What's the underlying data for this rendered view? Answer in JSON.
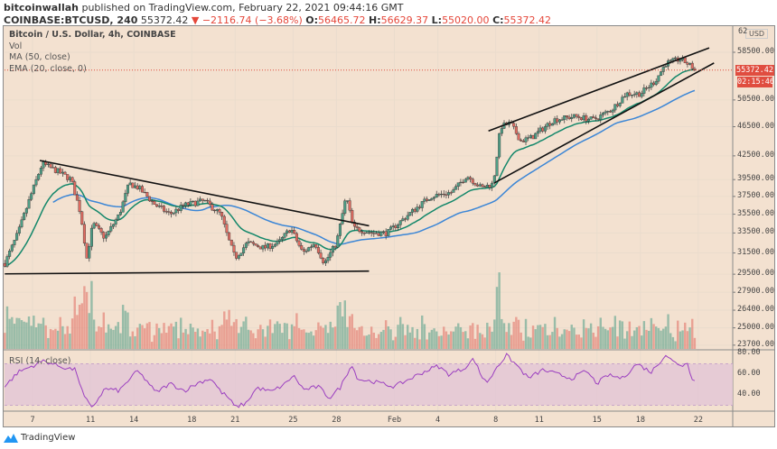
{
  "header": {
    "author": "bitcoinwallah",
    "published": "published on TradingView.com, February 22, 2021 09:44:16 GMT",
    "symbol": "COINBASE:BTCUSD, 240",
    "last": "55372.42",
    "change": "▼ −2116.74 (−3.68%)",
    "o_label": "O:",
    "o": "56465.72",
    "h_label": "H:",
    "h": "56629.37",
    "l_label": "L:",
    "l": "55020.00",
    "c_label": "C:",
    "c": "55372.42"
  },
  "legend": {
    "title": "Bitcoin / U.S. Dollar, 4h, COINBASE",
    "vol": "Vol",
    "ma": "MA (50, close)",
    "ema": "EMA (20, close, 0)",
    "rsi": "RSI (14, close)"
  },
  "price_axis": {
    "currency": "USD",
    "top_label": "62",
    "ticks": [
      "58500.00",
      "50500.00",
      "46500.00",
      "42500.00",
      "39500.00",
      "37500.00",
      "35500.00",
      "33500.00",
      "31500.00",
      "29500.00",
      "27900.00",
      "26400.00",
      "25000.00",
      "23700.00"
    ],
    "last_price_label": "55372.42",
    "countdown": "02:15:46"
  },
  "rsi_axis": {
    "ticks": [
      "80.00",
      "60.00",
      "40.00"
    ]
  },
  "time_axis": {
    "ticks": [
      "7",
      "11",
      "14",
      "18",
      "21",
      "25",
      "28",
      "Feb",
      "4",
      "8",
      "11",
      "15",
      "18",
      "22"
    ]
  },
  "footer": {
    "brand": "TradingView"
  },
  "colors": {
    "background": "#f3e1d0",
    "up": "#4e9e86",
    "down": "#e06b61",
    "ma": "#3b86d6",
    "ema": "#13876a",
    "rsi": "#9b3fc0",
    "last_price": "#e04d3f"
  },
  "chart_data": {
    "type": "candlestick",
    "interval": "4h",
    "scale": "log",
    "tick_prices": [
      58500,
      50500,
      46500,
      42500,
      39500,
      37500,
      35500,
      33500,
      31500,
      29500,
      27900,
      26400,
      25000,
      23700
    ],
    "tick_dates": [
      "2021-01-07",
      "2021-01-11",
      "2021-01-14",
      "2021-01-18",
      "2021-01-21",
      "2021-01-25",
      "2021-01-28",
      "2021-02-01",
      "2021-02-04",
      "2021-02-08",
      "2021-02-11",
      "2021-02-15",
      "2021-02-18",
      "2021-02-22"
    ],
    "close_path": [
      [
        "2021-01-05T14",
        30500
      ],
      [
        "2021-01-06T12",
        33500
      ],
      [
        "2021-01-07T06",
        37000
      ],
      [
        "2021-01-08T04",
        41500
      ],
      [
        "2021-01-09T06",
        40500
      ],
      [
        "2021-01-10T04",
        39500
      ],
      [
        "2021-01-10T20",
        35500
      ],
      [
        "2021-01-11T06",
        31000
      ],
      [
        "2021-01-11T16",
        34500
      ],
      [
        "2021-01-12T12",
        33000
      ],
      [
        "2021-01-13T12",
        35500
      ],
      [
        "2021-01-14T04",
        39000
      ],
      [
        "2021-01-14T20",
        38500
      ],
      [
        "2021-01-16T00",
        36500
      ],
      [
        "2021-01-17T00",
        35500
      ],
      [
        "2021-01-18T00",
        36500
      ],
      [
        "2021-01-19T08",
        37000
      ],
      [
        "2021-01-20T12",
        35500
      ],
      [
        "2021-01-21T00",
        33000
      ],
      [
        "2021-01-21T12",
        31000
      ],
      [
        "2021-01-22T08",
        32500
      ],
      [
        "2021-01-23T12",
        32000
      ],
      [
        "2021-01-24T12",
        32500
      ],
      [
        "2021-01-25T08",
        34000
      ],
      [
        "2021-01-26T04",
        31500
      ],
      [
        "2021-01-27T00",
        32500
      ],
      [
        "2021-01-27T16",
        30500
      ],
      [
        "2021-01-28T12",
        32500
      ],
      [
        "2021-01-29T04",
        37500
      ],
      [
        "2021-01-29T16",
        34000
      ],
      [
        "2021-01-31T00",
        33500
      ],
      [
        "2021-02-01T00",
        33500
      ],
      [
        "2021-02-02T12",
        35500
      ],
      [
        "2021-02-04T00",
        37500
      ],
      [
        "2021-02-05T12",
        38000
      ],
      [
        "2021-02-06T12",
        40000
      ],
      [
        "2021-02-07T12",
        38500
      ],
      [
        "2021-02-08T08",
        39000
      ],
      [
        "2021-02-08T20",
        46500
      ],
      [
        "2021-02-09T12",
        47000
      ],
      [
        "2021-02-10T06",
        44500
      ],
      [
        "2021-02-11T00",
        45000
      ],
      [
        "2021-02-12T12",
        47500
      ],
      [
        "2021-02-14T00",
        48000
      ],
      [
        "2021-02-15T06",
        47500
      ],
      [
        "2021-02-16T12",
        49000
      ],
      [
        "2021-02-17T12",
        51500
      ],
      [
        "2021-02-18T12",
        51500
      ],
      [
        "2021-02-19T12",
        53500
      ],
      [
        "2021-02-20T06",
        56500
      ],
      [
        "2021-02-21T06",
        57300
      ],
      [
        "2021-02-21T18",
        56500
      ],
      [
        "2021-02-22T08",
        55372.42
      ]
    ],
    "rsi_path": [
      [
        "2021-01-05T14",
        48
      ],
      [
        "2021-01-06T12",
        62
      ],
      [
        "2021-01-07T12",
        68
      ],
      [
        "2021-01-08T06",
        73
      ],
      [
        "2021-01-09T12",
        67
      ],
      [
        "2021-01-10T12",
        64
      ],
      [
        "2021-01-11T00",
        40
      ],
      [
        "2021-01-11T14",
        27
      ],
      [
        "2021-01-12T12",
        46
      ],
      [
        "2021-01-13T12",
        44
      ],
      [
        "2021-01-14T06",
        56
      ],
      [
        "2021-01-14T18",
        63
      ],
      [
        "2021-01-15T12",
        52
      ],
      [
        "2021-01-16T00",
        42
      ],
      [
        "2021-01-17T00",
        51
      ],
      [
        "2021-01-18T00",
        44
      ],
      [
        "2021-01-19T00",
        52
      ],
      [
        "2021-01-19T20",
        56
      ],
      [
        "2021-01-20T12",
        43
      ],
      [
        "2021-01-21T00",
        38
      ],
      [
        "2021-01-21T12",
        28
      ],
      [
        "2021-01-22T06",
        32
      ],
      [
        "2021-01-23T00",
        47
      ],
      [
        "2021-01-24T00",
        43
      ],
      [
        "2021-01-25T00",
        51
      ],
      [
        "2021-01-25T12",
        59
      ],
      [
        "2021-01-26T06",
        45
      ],
      [
        "2021-01-27T06",
        48
      ],
      [
        "2021-01-28T00",
        37
      ],
      [
        "2021-01-28T18",
        47
      ],
      [
        "2021-01-29T06",
        61
      ],
      [
        "2021-01-29T12",
        70
      ],
      [
        "2021-01-30T00",
        55
      ],
      [
        "2021-01-31T00",
        53
      ],
      [
        "2021-02-01T12",
        48
      ],
      [
        "2021-02-02T12",
        55
      ],
      [
        "2021-02-03T12",
        62
      ],
      [
        "2021-02-04T12",
        68
      ],
      [
        "2021-02-05T06",
        60
      ],
      [
        "2021-02-06T06",
        65
      ],
      [
        "2021-02-07T00",
        75
      ],
      [
        "2021-02-07T12",
        58
      ],
      [
        "2021-02-08T00",
        52
      ],
      [
        "2021-02-08T12",
        66
      ],
      [
        "2021-02-09T06",
        78
      ],
      [
        "2021-02-10T00",
        68
      ],
      [
        "2021-02-10T18",
        56
      ],
      [
        "2021-02-11T18",
        64
      ],
      [
        "2021-02-12T18",
        60
      ],
      [
        "2021-02-13T18",
        56
      ],
      [
        "2021-02-14T18",
        63
      ],
      [
        "2021-02-15T12",
        51
      ],
      [
        "2021-02-16T06",
        59
      ],
      [
        "2021-02-17T06",
        56
      ],
      [
        "2021-02-18T06",
        70
      ],
      [
        "2021-02-19T06",
        62
      ],
      [
        "2021-02-20T06",
        79
      ],
      [
        "2021-02-20T18",
        72
      ],
      [
        "2021-02-21T12",
        68
      ],
      [
        "2021-02-21T18",
        72
      ],
      [
        "2021-02-22T00",
        58
      ],
      [
        "2021-02-22T08",
        52
      ]
    ],
    "rsi_bands": [
      70,
      30
    ],
    "trendlines": [
      {
        "from": [
          "2021-01-08T00",
          41900
        ],
        "to": [
          "2021-01-30T18",
          34250
        ]
      },
      {
        "from": [
          "2021-01-05T14",
          29530
        ],
        "to": [
          "2021-01-30T18",
          29780
        ]
      },
      {
        "from": [
          "2021-02-08T00",
          45900
        ],
        "to": [
          "2021-02-23T06",
          59300
        ]
      },
      {
        "from": [
          "2021-02-08T10",
          39100
        ],
        "to": [
          "2021-02-23T14",
          56600
        ]
      }
    ]
  }
}
